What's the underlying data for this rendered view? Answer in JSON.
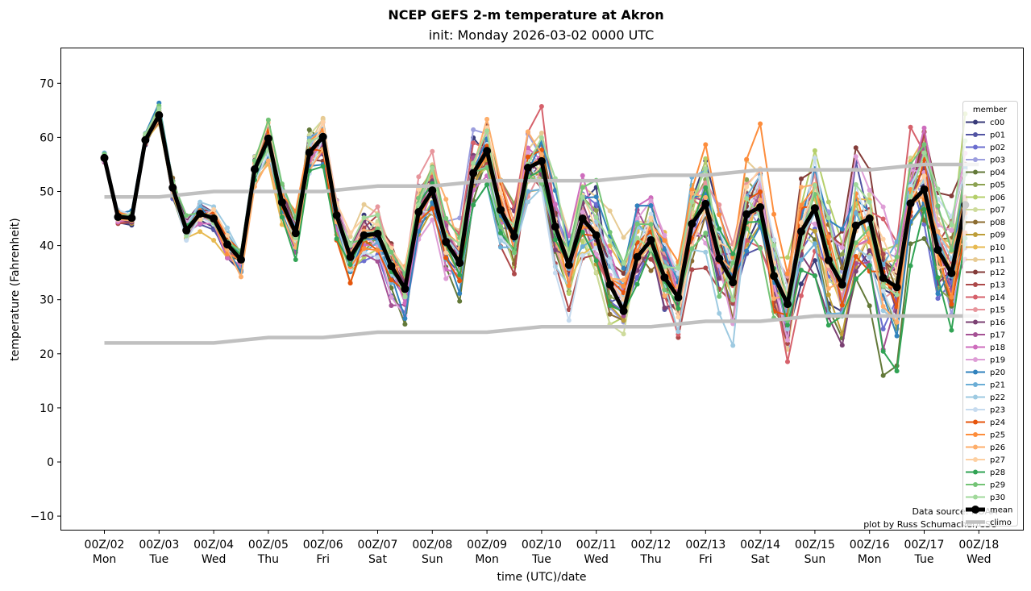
{
  "chart_data": {
    "type": "line",
    "title": "NCEP GEFS 2-m temperature at Akron",
    "subtitle": "init: Monday 2026-03-02 0000 UTC",
    "xlabel": "time (UTC)/date",
    "ylabel": "temperature (Fahrenheit)",
    "ylim": [
      -12,
      76
    ],
    "yticks": [
      -10,
      0,
      10,
      20,
      30,
      40,
      50,
      60,
      70
    ],
    "xlim_days": [
      -0.4,
      16.85
    ],
    "xticks": [
      {
        "day": 0,
        "label1": "00Z/02",
        "label2": "Mon"
      },
      {
        "day": 1,
        "label1": "00Z/03",
        "label2": "Tue"
      },
      {
        "day": 2,
        "label1": "00Z/04",
        "label2": "Wed"
      },
      {
        "day": 3,
        "label1": "00Z/05",
        "label2": "Thu"
      },
      {
        "day": 4,
        "label1": "00Z/06",
        "label2": "Fri"
      },
      {
        "day": 5,
        "label1": "00Z/07",
        "label2": "Sat"
      },
      {
        "day": 6,
        "label1": "00Z/08",
        "label2": "Sun"
      },
      {
        "day": 7,
        "label1": "00Z/09",
        "label2": "Mon"
      },
      {
        "day": 8,
        "label1": "00Z/10",
        "label2": "Tue"
      },
      {
        "day": 9,
        "label1": "00Z/11",
        "label2": "Wed"
      },
      {
        "day": 10,
        "label1": "00Z/12",
        "label2": "Thu"
      },
      {
        "day": 11,
        "label1": "00Z/13",
        "label2": "Fri"
      },
      {
        "day": 12,
        "label1": "00Z/14",
        "label2": "Sat"
      },
      {
        "day": 13,
        "label1": "00Z/15",
        "label2": "Sun"
      },
      {
        "day": 14,
        "label1": "00Z/16",
        "label2": "Mon"
      },
      {
        "day": 15,
        "label1": "00Z/17",
        "label2": "Tue"
      },
      {
        "day": 16,
        "label1": "00Z/18",
        "label2": "Wed"
      }
    ],
    "time_step_hours": 6,
    "mean": {
      "name": "mean",
      "color": "#000000",
      "values": [
        56.2,
        45.3,
        45.1,
        59.5,
        64.1,
        50.7,
        42.8,
        45.9,
        45.0,
        40.2,
        37.4,
        54.1,
        59.8,
        48.0,
        42.3,
        57.2,
        60.1,
        45.6,
        37.9,
        41.9,
        42.2,
        36.2,
        32.0,
        46.2,
        50.2,
        40.7,
        36.8,
        53.4,
        57.5,
        46.6,
        41.7,
        54.4,
        55.6,
        43.5,
        36.4,
        45.0,
        41.9,
        32.8,
        27.9,
        37.9,
        41.0,
        34.1,
        30.4,
        44.0,
        47.7,
        37.6,
        33.2,
        45.8,
        47.1,
        34.4,
        29.2,
        42.6,
        46.9,
        37.3,
        32.8,
        43.7,
        45.0,
        34.0,
        32.3,
        47.8,
        50.4,
        39.2,
        34.9,
        47.5
      ]
    },
    "climo": {
      "name": "climo",
      "color": "#c0c0c0",
      "high": {
        "days": [
          0,
          1,
          2,
          3,
          4,
          5,
          6,
          7,
          8,
          9,
          10,
          11,
          12,
          13,
          14,
          15,
          16
        ],
        "values": [
          49,
          49,
          50,
          50,
          50,
          51,
          51,
          52,
          52,
          52,
          53,
          53,
          54,
          54,
          54,
          55,
          55
        ]
      },
      "low": {
        "days": [
          0,
          1,
          2,
          3,
          4,
          5,
          6,
          7,
          8,
          9,
          10,
          11,
          12,
          13,
          14,
          15,
          16
        ],
        "values": [
          22,
          22,
          22,
          23,
          23,
          24,
          24,
          24,
          25,
          25,
          25,
          26,
          26,
          27,
          27,
          27,
          27
        ]
      }
    },
    "members": [
      {
        "name": "c00",
        "color": "#393b79"
      },
      {
        "name": "p01",
        "color": "#5254a3"
      },
      {
        "name": "p02",
        "color": "#6b6ecf"
      },
      {
        "name": "p03",
        "color": "#9c9ede"
      },
      {
        "name": "p04",
        "color": "#637939"
      },
      {
        "name": "p05",
        "color": "#8ca252"
      },
      {
        "name": "p06",
        "color": "#b5cf6b"
      },
      {
        "name": "p07",
        "color": "#cedb9c"
      },
      {
        "name": "p08",
        "color": "#8c6d31"
      },
      {
        "name": "p09",
        "color": "#bd9e39"
      },
      {
        "name": "p10",
        "color": "#e7ba52"
      },
      {
        "name": "p11",
        "color": "#e7cb94"
      },
      {
        "name": "p12",
        "color": "#843c39"
      },
      {
        "name": "p13",
        "color": "#ad494a"
      },
      {
        "name": "p14",
        "color": "#d6616b"
      },
      {
        "name": "p15",
        "color": "#e7969c"
      },
      {
        "name": "p16",
        "color": "#7b4173"
      },
      {
        "name": "p17",
        "color": "#a55194"
      },
      {
        "name": "p18",
        "color": "#ce6dbd"
      },
      {
        "name": "p19",
        "color": "#de9ed6"
      },
      {
        "name": "p20",
        "color": "#3182bd"
      },
      {
        "name": "p21",
        "color": "#6baed6"
      },
      {
        "name": "p22",
        "color": "#9ecae1"
      },
      {
        "name": "p23",
        "color": "#c6dbef"
      },
      {
        "name": "p24",
        "color": "#e6550d"
      },
      {
        "name": "p25",
        "color": "#fd8d3c"
      },
      {
        "name": "p26",
        "color": "#fdae6b"
      },
      {
        "name": "p27",
        "color": "#fdd0a2"
      },
      {
        "name": "p28",
        "color": "#31a354"
      },
      {
        "name": "p29",
        "color": "#74c476"
      },
      {
        "name": "p30",
        "color": "#a1d99b"
      }
    ],
    "legend": {
      "title": "member",
      "position": "right",
      "extra_entries": [
        "mean",
        "climo"
      ]
    },
    "annotations": [
      "Data source: NOAA",
      "plot by Russ Schumacher/CSU"
    ],
    "grid": false
  }
}
